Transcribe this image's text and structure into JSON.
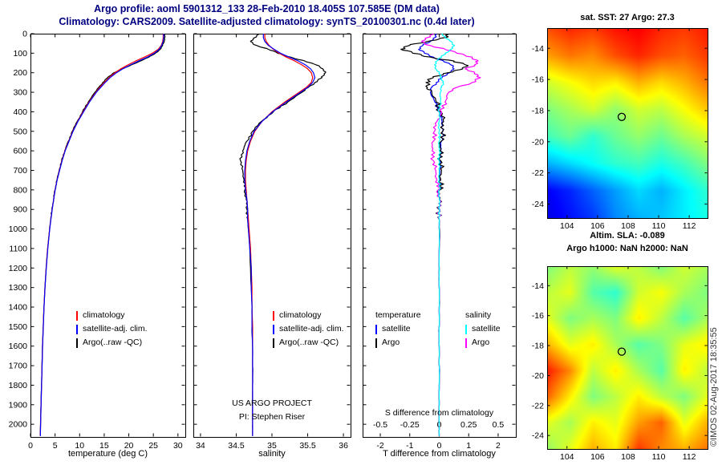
{
  "header": {
    "line1": "Argo profile: aoml 5901312_133 28-Feb-2010 18.405S 107.585E (DM data)",
    "line2": "Climatology: CARS2009. Satellite-adjusted climatology: synTS_20100301.nc (0.4d later)",
    "color": "#000080"
  },
  "credit": "©IMOS 02-Aug-2017 18:35:55",
  "annotations": {
    "project_line1": "US ARGO PROJECT",
    "project_line2": "PI: Stephen Riser"
  },
  "chart_data": [
    {
      "type": "line",
      "panel": "temperature-profile",
      "xlabel": "temperature (deg C)",
      "xlim": [
        0,
        31.5
      ],
      "xticks": [
        0,
        5,
        10,
        15,
        20,
        25,
        30
      ],
      "ylim": [
        0,
        2065
      ],
      "yticks": [
        0,
        100,
        200,
        300,
        400,
        500,
        600,
        700,
        800,
        900,
        1000,
        1100,
        1200,
        1300,
        1400,
        1500,
        1600,
        1700,
        1800,
        1900,
        2000
      ],
      "legend": [
        {
          "label": "climatology",
          "color": "#ff0000"
        },
        {
          "label": "satellite-adj. clim.",
          "color": "#0000ff"
        },
        {
          "label": "Argo(..raw -QC)",
          "color": "#000000"
        }
      ],
      "depths": [
        0,
        20,
        40,
        60,
        80,
        100,
        120,
        140,
        160,
        180,
        200,
        225,
        250,
        275,
        300,
        350,
        400,
        450,
        500,
        550,
        600,
        650,
        700,
        750,
        800,
        850,
        900,
        950,
        1000,
        1100,
        1200,
        1300,
        1400,
        1500,
        1600,
        1700,
        1800,
        1900,
        2000,
        2060
      ],
      "series": [
        {
          "name": "climatology",
          "color": "#ff0000",
          "z": 1,
          "noisy": false,
          "values": [
            27.0,
            27.0,
            26.9,
            26.6,
            26.0,
            24.8,
            23.2,
            21.4,
            19.8,
            18.4,
            17.2,
            16.0,
            15.0,
            14.1,
            13.3,
            11.9,
            10.7,
            9.6,
            8.6,
            7.8,
            7.0,
            6.4,
            5.9,
            5.4,
            5.0,
            4.7,
            4.4,
            4.15,
            3.9,
            3.5,
            3.2,
            2.95,
            2.75,
            2.6,
            2.45,
            2.35,
            2.25,
            2.15,
            2.05,
            2.0
          ]
        },
        {
          "name": "satellite-adj. clim.",
          "color": "#0000ff",
          "z": 2,
          "noisy": false,
          "values": [
            27.1,
            27.1,
            27.0,
            26.7,
            26.2,
            25.2,
            23.8,
            22.0,
            20.3,
            18.8,
            17.5,
            16.2,
            15.2,
            14.3,
            13.4,
            12.0,
            10.8,
            9.65,
            8.65,
            7.85,
            7.05,
            6.45,
            5.92,
            5.42,
            5.02,
            4.72,
            4.42,
            4.17,
            3.92,
            3.52,
            3.21,
            2.96,
            2.76,
            2.61,
            2.46,
            2.36,
            2.26,
            2.16,
            2.06,
            2.01
          ]
        },
        {
          "name": "Argo(..raw -QC)",
          "color": "#000000",
          "z": 0,
          "noisy": true,
          "jitter": 0.07,
          "values": [
            27.3,
            27.3,
            27.2,
            26.9,
            26.4,
            25.4,
            24.1,
            22.4,
            20.5,
            18.7,
            17.0,
            15.7,
            14.7,
            13.9,
            13.1,
            11.75,
            10.6,
            9.5,
            8.5,
            7.72,
            6.95,
            6.35,
            5.85,
            5.37,
            4.98,
            4.68,
            4.38,
            4.13,
            3.88,
            3.49,
            3.19,
            2.94,
            2.74,
            2.59,
            2.44,
            2.34,
            2.24,
            2.14,
            2.04,
            2.0
          ]
        }
      ]
    },
    {
      "type": "line",
      "panel": "salinity-profile",
      "xlabel": "salinity",
      "xlim": [
        33.9,
        36.1
      ],
      "xticks": [
        34,
        34.5,
        35,
        35.5,
        36
      ],
      "ylim": [
        0,
        2065
      ],
      "yticks": [
        0,
        100,
        200,
        300,
        400,
        500,
        600,
        700,
        800,
        900,
        1000,
        1100,
        1200,
        1300,
        1400,
        1500,
        1600,
        1700,
        1800,
        1900,
        2000
      ],
      "legend": [
        {
          "label": "climatology",
          "color": "#ff0000"
        },
        {
          "label": "satellite-adj. clim.",
          "color": "#0000ff"
        },
        {
          "label": "Argo(..raw -QC)",
          "color": "#000000"
        }
      ],
      "depths": [
        0,
        20,
        40,
        60,
        80,
        100,
        120,
        140,
        160,
        180,
        200,
        225,
        250,
        275,
        300,
        350,
        400,
        450,
        500,
        550,
        600,
        650,
        700,
        750,
        800,
        850,
        900,
        950,
        1000,
        1100,
        1200,
        1300,
        1400,
        1500,
        1600,
        1700,
        1800,
        1900,
        2000,
        2060
      ],
      "series": [
        {
          "name": "climatology",
          "color": "#ff0000",
          "z": 1,
          "noisy": false,
          "values": [
            34.9,
            34.9,
            34.92,
            34.96,
            35.02,
            35.1,
            35.2,
            35.32,
            35.42,
            35.5,
            35.55,
            35.57,
            35.55,
            35.48,
            35.38,
            35.18,
            35.0,
            34.86,
            34.76,
            34.7,
            34.66,
            34.64,
            34.63,
            34.63,
            34.64,
            34.65,
            34.66,
            34.67,
            34.68,
            34.7,
            34.71,
            34.72,
            34.72,
            34.73,
            34.73,
            34.73,
            34.73,
            34.73,
            34.73,
            34.73
          ]
        },
        {
          "name": "satellite-adj. clim.",
          "color": "#0000ff",
          "z": 2,
          "noisy": false,
          "values": [
            34.88,
            34.88,
            34.9,
            34.95,
            35.03,
            35.12,
            35.24,
            35.37,
            35.47,
            35.54,
            35.58,
            35.6,
            35.57,
            35.5,
            35.4,
            35.2,
            35.01,
            34.86,
            34.75,
            34.69,
            34.65,
            34.63,
            34.62,
            34.62,
            34.63,
            34.65,
            34.66,
            34.66,
            34.67,
            34.69,
            34.71,
            34.71,
            34.72,
            34.72,
            34.73,
            34.73,
            34.73,
            34.73,
            34.73,
            34.73
          ]
        },
        {
          "name": "Argo(..raw -QC)",
          "color": "#000000",
          "z": 0,
          "noisy": true,
          "jitter": 0.012,
          "values": [
            34.82,
            34.76,
            34.7,
            34.78,
            34.95,
            35.08,
            35.26,
            35.46,
            35.62,
            35.71,
            35.75,
            35.7,
            35.6,
            35.51,
            35.42,
            35.22,
            35.02,
            34.85,
            34.73,
            34.65,
            34.59,
            34.56,
            34.59,
            34.61,
            34.62,
            34.64,
            34.65,
            34.66,
            34.67,
            34.69,
            34.7,
            34.71,
            34.72,
            34.72,
            34.73,
            34.73,
            34.73,
            34.73,
            34.73,
            34.73
          ]
        }
      ]
    },
    {
      "type": "line",
      "panel": "difference-profile",
      "xlabel": "T difference from climatology",
      "s_axis_label": "S difference from climatology",
      "xlim_T": [
        -2.6,
        2.6
      ],
      "xticks_T": [
        -2,
        -1,
        0,
        1,
        2
      ],
      "xlim_S": [
        -0.65,
        0.65
      ],
      "xticks_S": [
        -0.5,
        -0.25,
        0,
        0.25,
        0.5
      ],
      "ylim": [
        0,
        2065
      ],
      "yticks": [
        0,
        100,
        200,
        300,
        400,
        500,
        600,
        700,
        800,
        900,
        1000,
        1100,
        1200,
        1300,
        1400,
        1500,
        1600,
        1700,
        1800,
        1900,
        2000
      ],
      "legend": {
        "temperature_header": "temperature",
        "salinity_header": "salinity",
        "temperature": [
          {
            "label": "satellite",
            "color": "#0000ff"
          },
          {
            "label": "Argo",
            "color": "#000000"
          }
        ],
        "salinity": [
          {
            "label": "satellite",
            "color": "#00ffff"
          },
          {
            "label": "Argo",
            "color": "#ff00ff"
          }
        ]
      },
      "depths": [
        0,
        20,
        40,
        60,
        80,
        100,
        120,
        140,
        160,
        180,
        200,
        225,
        250,
        275,
        300,
        350,
        400,
        450,
        500,
        550,
        600,
        650,
        700,
        750,
        800,
        850,
        900,
        950,
        1000,
        1100,
        1200,
        1300,
        1400,
        1500,
        1600,
        1700,
        1800,
        1900,
        2000,
        2060
      ],
      "series": [
        {
          "name": "T satellite",
          "axis": "T",
          "color": "#0000ff",
          "noisy": true,
          "jitter": 0.04,
          "values": [
            -0.1,
            -0.15,
            -0.3,
            -0.55,
            -0.7,
            -0.5,
            -0.2,
            0.15,
            0.4,
            0.5,
            0.35,
            0.1,
            -0.1,
            -0.25,
            -0.3,
            -0.15,
            0.0,
            0.1,
            0.12,
            0.08,
            0.05,
            0.03,
            0.02,
            0.02,
            0.01,
            0.01,
            0.01,
            0.0,
            0.0,
            0.0,
            0.0,
            0.0,
            0.0,
            0.0,
            0.0,
            0.0,
            0.0,
            0.0,
            0.0,
            0.0
          ]
        },
        {
          "name": "T Argo",
          "axis": "T",
          "color": "#000000",
          "noisy": true,
          "jitter": 0.08,
          "values": [
            0.3,
            0.2,
            -0.4,
            -1.0,
            -1.3,
            -0.9,
            -0.3,
            0.5,
            0.9,
            0.8,
            0.3,
            -0.2,
            -0.45,
            -0.4,
            -0.25,
            -0.1,
            0.05,
            0.15,
            0.12,
            0.07,
            0.03,
            0.05,
            0.08,
            0.05,
            0.02,
            0.0,
            -0.01,
            0.0,
            0.01,
            0.0,
            0.0,
            0.0,
            0.0,
            0.0,
            0.0,
            0.0,
            0.0,
            0.0,
            0.0,
            0.0
          ]
        },
        {
          "name": "S Argo",
          "axis": "S",
          "color": "#ff00ff",
          "noisy": true,
          "jitter": 0.015,
          "values": [
            -0.05,
            -0.1,
            -0.15,
            -0.08,
            0.05,
            0.15,
            0.28,
            0.33,
            0.3,
            0.22,
            0.3,
            0.35,
            0.28,
            0.15,
            0.08,
            0.05,
            0.02,
            -0.02,
            -0.04,
            -0.05,
            -0.06,
            -0.05,
            -0.03,
            -0.02,
            -0.01,
            0.0,
            0.0,
            0.0,
            0.0,
            0.0,
            0.0,
            0.0,
            0.0,
            0.0,
            0.0,
            0.0,
            0.0,
            0.0,
            0.0,
            0.0
          ]
        },
        {
          "name": "S satellite",
          "axis": "S",
          "color": "#00ffff",
          "noisy": true,
          "jitter": 0.008,
          "values": [
            0.02,
            0.05,
            0.1,
            0.13,
            0.1,
            0.05,
            0.02,
            -0.02,
            -0.04,
            -0.03,
            0.0,
            0.02,
            0.03,
            0.02,
            0.01,
            0.01,
            0.0,
            0.0,
            0.0,
            0.0,
            0.0,
            0.0,
            0.0,
            0.0,
            0.0,
            0.0,
            0.0,
            0.0,
            0.0,
            0.0,
            0.0,
            0.0,
            0.0,
            0.0,
            0.0,
            0.0,
            0.0,
            0.0,
            0.0,
            0.0
          ]
        }
      ]
    },
    {
      "type": "heatmap",
      "panel": "sst-map",
      "title": "sat. SST: 27 Argo: 27.3",
      "lon_range": [
        102.7,
        113.2
      ],
      "lat_range": [
        -12.7,
        -24.9
      ],
      "xticks": [
        104,
        106,
        108,
        110,
        112
      ],
      "yticks": [
        -14,
        -16,
        -18,
        -20,
        -22,
        -24
      ],
      "marker": {
        "lon": 107.585,
        "lat": -18.405
      },
      "grid": [
        [
          0.8,
          0.84,
          0.82,
          0.86,
          0.88,
          0.84,
          0.82,
          0.85
        ],
        [
          0.72,
          0.76,
          0.74,
          0.8,
          0.84,
          0.8,
          0.78,
          0.82
        ],
        [
          0.58,
          0.62,
          0.66,
          0.64,
          0.7,
          0.66,
          0.7,
          0.76
        ],
        [
          0.5,
          0.54,
          0.58,
          0.52,
          0.58,
          0.56,
          0.62,
          0.68
        ],
        [
          0.44,
          0.48,
          0.42,
          0.48,
          0.52,
          0.48,
          0.54,
          0.58
        ],
        [
          0.3,
          0.34,
          0.38,
          0.42,
          0.44,
          0.4,
          0.44,
          0.5
        ],
        [
          0.12,
          0.16,
          0.22,
          0.28,
          0.34,
          0.3,
          0.36,
          0.42
        ],
        [
          0.1,
          0.14,
          0.18,
          0.26,
          0.3,
          0.32,
          0.36,
          0.4
        ]
      ]
    },
    {
      "type": "heatmap",
      "panel": "sla-map",
      "title1": "Altim. SLA: -0.089",
      "title2": "Argo h1000: NaN h2000: NaN",
      "lon_range": [
        102.7,
        113.2
      ],
      "lat_range": [
        -12.7,
        -24.9
      ],
      "xticks": [
        104,
        106,
        108,
        110,
        112
      ],
      "yticks": [
        -14,
        -16,
        -18,
        -20,
        -22,
        -24
      ],
      "marker": {
        "lon": 107.585,
        "lat": -18.405
      },
      "grid": [
        [
          0.5,
          0.56,
          0.52,
          0.6,
          0.56,
          0.5,
          0.58,
          0.54
        ],
        [
          0.56,
          0.6,
          0.46,
          0.42,
          0.58,
          0.62,
          0.54,
          0.5
        ],
        [
          0.6,
          0.5,
          0.54,
          0.5,
          0.64,
          0.56,
          0.46,
          0.54
        ],
        [
          0.7,
          0.6,
          0.64,
          0.54,
          0.46,
          0.5,
          0.6,
          0.64
        ],
        [
          0.85,
          0.74,
          0.56,
          0.64,
          0.54,
          0.46,
          0.64,
          0.56
        ],
        [
          0.78,
          0.64,
          0.5,
          0.56,
          0.64,
          0.56,
          0.5,
          0.6
        ],
        [
          0.6,
          0.54,
          0.64,
          0.6,
          0.72,
          0.78,
          0.6,
          0.7
        ],
        [
          0.52,
          0.6,
          0.7,
          0.64,
          0.82,
          0.74,
          0.7,
          0.76
        ]
      ]
    }
  ]
}
